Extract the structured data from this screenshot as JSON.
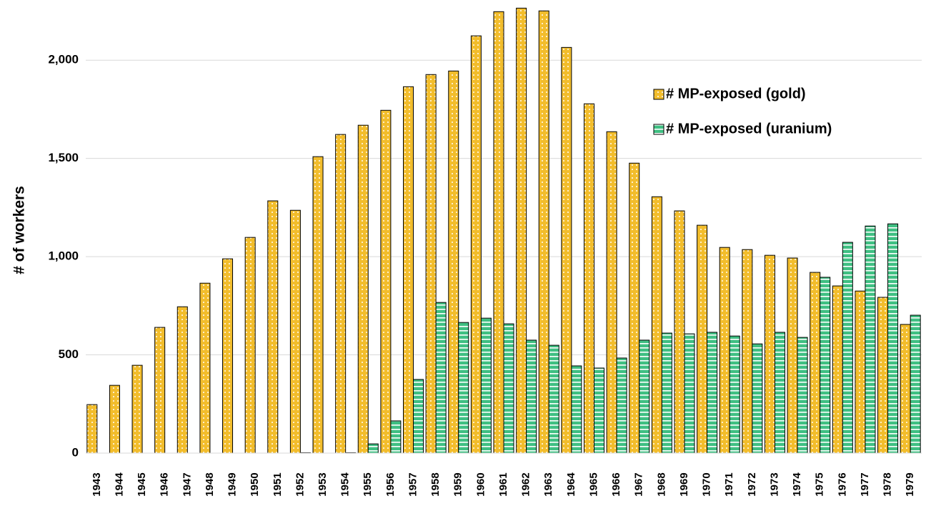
{
  "chart_data": {
    "type": "bar",
    "y_label": "# of workers",
    "categories": [
      "1943",
      "1944",
      "1945",
      "1946",
      "1947",
      "1948",
      "1949",
      "1950",
      "1951",
      "1952",
      "1953",
      "1954",
      "1955",
      "1956",
      "1957",
      "1958",
      "1959",
      "1960",
      "1961",
      "1962",
      "1963",
      "1964",
      "1965",
      "1966",
      "1967",
      "1968",
      "1969",
      "1970",
      "1971",
      "1972",
      "1973",
      "1974",
      "1975",
      "1976",
      "1977",
      "1978",
      "1979"
    ],
    "series": [
      {
        "name": "# MP-exposed (gold)",
        "color": "#f2bd2c",
        "pattern": "dots",
        "values": [
          247,
          345,
          447,
          640,
          745,
          865,
          989,
          1098,
          1284,
          1236,
          1509,
          1622,
          1669,
          1745,
          1865,
          1927,
          1945,
          2124,
          2247,
          2265,
          2251,
          2065,
          1778,
          1636,
          1476,
          1305,
          1233,
          1160,
          1047,
          1036,
          1007,
          993,
          920,
          851,
          825,
          793,
          655
        ]
      },
      {
        "name": "# MP-exposed (uranium)",
        "color": "#3fbf82",
        "pattern": "stripes",
        "values": [
          0,
          0,
          0,
          0,
          0,
          0,
          0,
          0,
          0,
          2,
          0,
          2,
          47,
          164,
          375,
          767,
          665,
          687,
          658,
          575,
          549,
          444,
          433,
          484,
          575,
          611,
          607,
          615,
          596,
          556,
          615,
          589,
          895,
          1073,
          1156,
          1167,
          702
        ]
      }
    ],
    "ylim": [
      0,
      2270
    ],
    "yticks": [
      0,
      {
        "value": 500,
        "label": "500"
      },
      {
        "value": 1000,
        "label": "1,000"
      },
      {
        "value": 1500,
        "label": "1,500"
      },
      {
        "value": 2000,
        "label": "2,000"
      }
    ],
    "grid": true,
    "legend": "upper-right"
  }
}
